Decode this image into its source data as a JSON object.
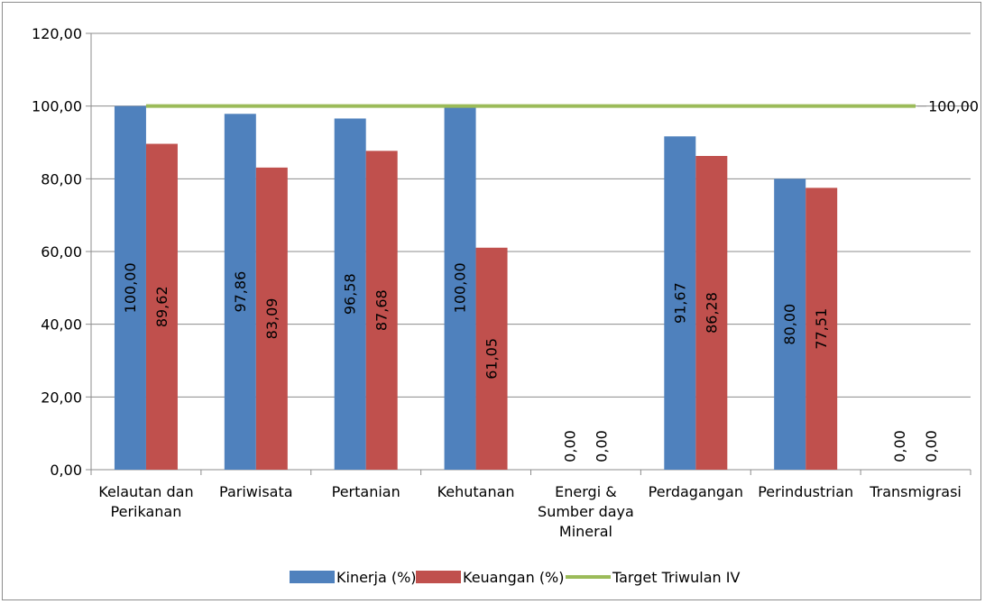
{
  "chart_data": {
    "type": "bar",
    "categories": [
      [
        "Kelautan dan",
        "Perikanan"
      ],
      [
        "Pariwisata"
      ],
      [
        "Pertanian"
      ],
      [
        "Kehutanan"
      ],
      [
        "Energi &",
        "Sumber daya",
        "Mineral"
      ],
      [
        "Perdagangan"
      ],
      [
        "Perindustrian"
      ],
      [
        "Transmigrasi"
      ]
    ],
    "series": [
      {
        "name": "Kinerja (%)",
        "color": "#4f81bd",
        "values": [
          100.0,
          97.86,
          96.58,
          100.0,
          0.0,
          91.67,
          80.0,
          0.0
        ],
        "labels": [
          "100,00",
          "97,86",
          "96,58",
          "100,00",
          "0,00",
          "91,67",
          "80,00",
          "0,00"
        ]
      },
      {
        "name": "Keuangan (%)",
        "color": "#c0504d",
        "values": [
          89.62,
          83.09,
          87.68,
          61.05,
          0.0,
          86.28,
          77.51,
          0.0
        ],
        "labels": [
          "89,62",
          "83,09",
          "87,68",
          "61,05",
          "0,00",
          "86,28",
          "77,51",
          "0,00"
        ]
      }
    ],
    "line": {
      "name": "Target Triwulan IV",
      "color": "#9bbb59",
      "value": 100.0,
      "label": "100,00"
    },
    "ylim": [
      0,
      120
    ],
    "yticks": [
      0,
      20,
      40,
      60,
      80,
      100,
      120
    ],
    "ytick_labels": [
      "0,00",
      "20,00",
      "40,00",
      "60,00",
      "80,00",
      "100,00",
      "120,00"
    ],
    "gridlines": true,
    "legend_position": "bottom"
  }
}
